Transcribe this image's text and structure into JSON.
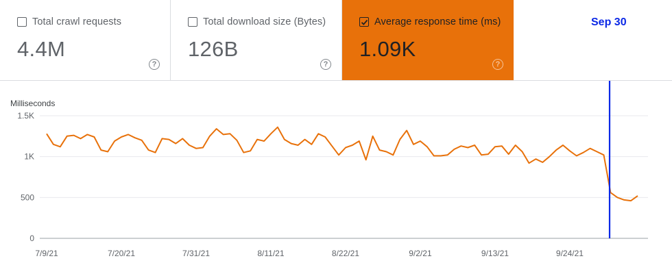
{
  "metrics": [
    {
      "label": "Total crawl requests",
      "value": "4.4M",
      "checked": false
    },
    {
      "label": "Total download size (Bytes)",
      "value": "126B",
      "checked": false
    },
    {
      "label": "Average response time (ms)",
      "value": "1.09K",
      "checked": true
    }
  ],
  "help_glyph": "?",
  "accent_color": "#e8710a",
  "annotation": {
    "label": "Sep 30",
    "color": "#0b28e6"
  },
  "chart_data": {
    "type": "line",
    "ylabel": "Milliseconds",
    "ylim": [
      0,
      1500
    ],
    "yticks": [
      "1.5K",
      "1K",
      "500",
      "0"
    ],
    "xtick_labels": [
      "7/9/21",
      "7/20/21",
      "7/31/21",
      "8/11/21",
      "8/22/21",
      "9/2/21",
      "9/13/21",
      "9/24/21"
    ],
    "grid": true,
    "series": [
      {
        "color": "#e8710a",
        "values": [
          1280,
          1150,
          1120,
          1250,
          1260,
          1220,
          1270,
          1240,
          1080,
          1060,
          1190,
          1240,
          1270,
          1230,
          1200,
          1080,
          1050,
          1220,
          1210,
          1160,
          1220,
          1140,
          1100,
          1110,
          1250,
          1340,
          1270,
          1280,
          1200,
          1050,
          1070,
          1210,
          1190,
          1280,
          1360,
          1210,
          1160,
          1140,
          1210,
          1150,
          1280,
          1240,
          1130,
          1020,
          1110,
          1140,
          1190,
          960,
          1250,
          1080,
          1060,
          1020,
          1210,
          1320,
          1150,
          1190,
          1120,
          1010,
          1010,
          1020,
          1090,
          1130,
          1110,
          1140,
          1020,
          1030,
          1120,
          1130,
          1030,
          1140,
          1060,
          920,
          970,
          930,
          1000,
          1080,
          1140,
          1070,
          1010,
          1050,
          1100,
          1060,
          1020,
          560,
          500,
          470,
          460,
          520
        ]
      }
    ]
  }
}
